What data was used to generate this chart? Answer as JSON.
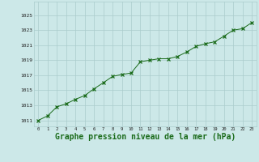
{
  "x": [
    0,
    1,
    2,
    3,
    4,
    5,
    6,
    7,
    8,
    9,
    10,
    11,
    12,
    13,
    14,
    15,
    16,
    17,
    18,
    19,
    20,
    21,
    22,
    23
  ],
  "y": [
    1011.0,
    1011.6,
    1012.8,
    1013.2,
    1013.8,
    1014.3,
    1015.2,
    1016.0,
    1016.85,
    1017.1,
    1017.3,
    1018.8,
    1019.0,
    1019.2,
    1019.2,
    1019.5,
    1020.1,
    1020.85,
    1021.2,
    1021.45,
    1022.2,
    1023.0,
    1023.2,
    1024.0
  ],
  "line_color": "#1a6b1a",
  "marker": "x",
  "bg_color": "#cce8e8",
  "grid_color": "#aacccc",
  "xlabel": "Graphe pression niveau de la mer (hPa)",
  "xlabel_color": "#1a6b1a",
  "xlabel_fontsize": 7,
  "ytick_labels": [
    1011,
    1013,
    1015,
    1017,
    1019,
    1021,
    1023,
    1025
  ],
  "xtick_labels": [
    0,
    1,
    2,
    3,
    4,
    5,
    6,
    7,
    8,
    9,
    10,
    11,
    12,
    13,
    14,
    15,
    16,
    17,
    18,
    19,
    20,
    21,
    22,
    23
  ],
  "ylim": [
    1010.2,
    1026.8
  ],
  "xlim": [
    -0.5,
    23.5
  ],
  "figsize": [
    3.2,
    2.0
  ],
  "dpi": 100
}
